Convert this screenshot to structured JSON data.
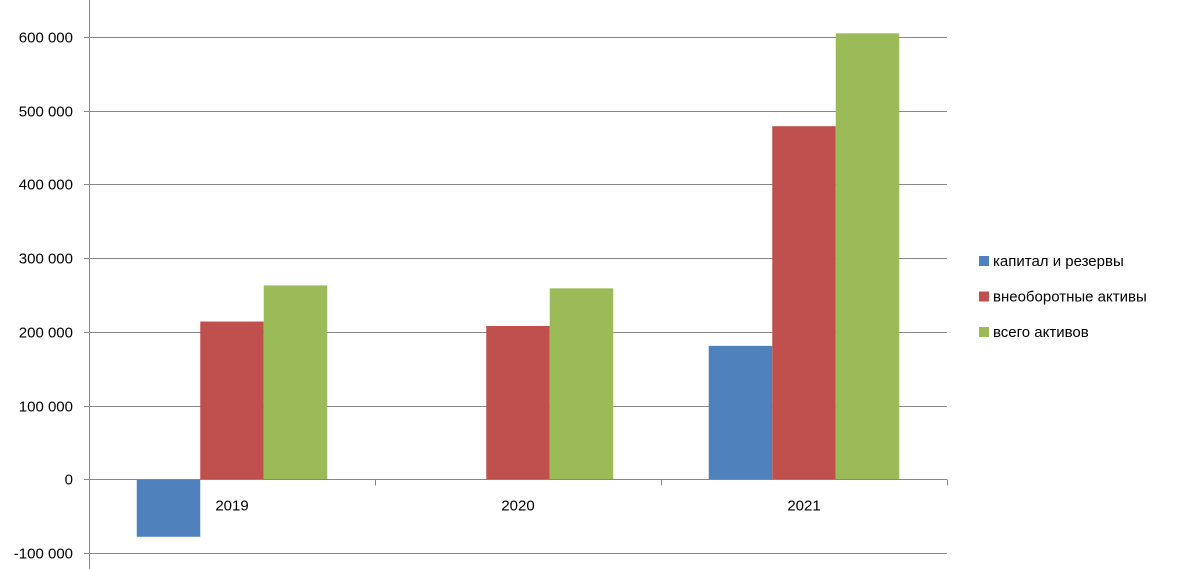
{
  "chart_data": {
    "type": "bar",
    "categories": [
      "2019",
      "2020",
      "2021"
    ],
    "series": [
      {
        "name": "капитал и резервы",
        "color": "#4f81bd",
        "values": [
          -78000,
          0,
          181000
        ]
      },
      {
        "name": "внеоборотные активы",
        "color": "#c0504d",
        "values": [
          214000,
          208000,
          479000
        ]
      },
      {
        "name": "всего активов",
        "color": "#9bbb59",
        "values": [
          263000,
          259000,
          605000
        ]
      }
    ],
    "y_ticks": [
      -100000,
      0,
      100000,
      200000,
      300000,
      400000,
      500000,
      600000
    ],
    "y_tick_labels": [
      "-100 000",
      "0",
      "100 000",
      "200 000",
      "300 000",
      "400 000",
      "500 000",
      "600 000"
    ],
    "ylim": [
      -100000,
      600000
    ],
    "grid": true,
    "legend_position": "right",
    "title": "",
    "xlabel": "",
    "ylabel": ""
  }
}
